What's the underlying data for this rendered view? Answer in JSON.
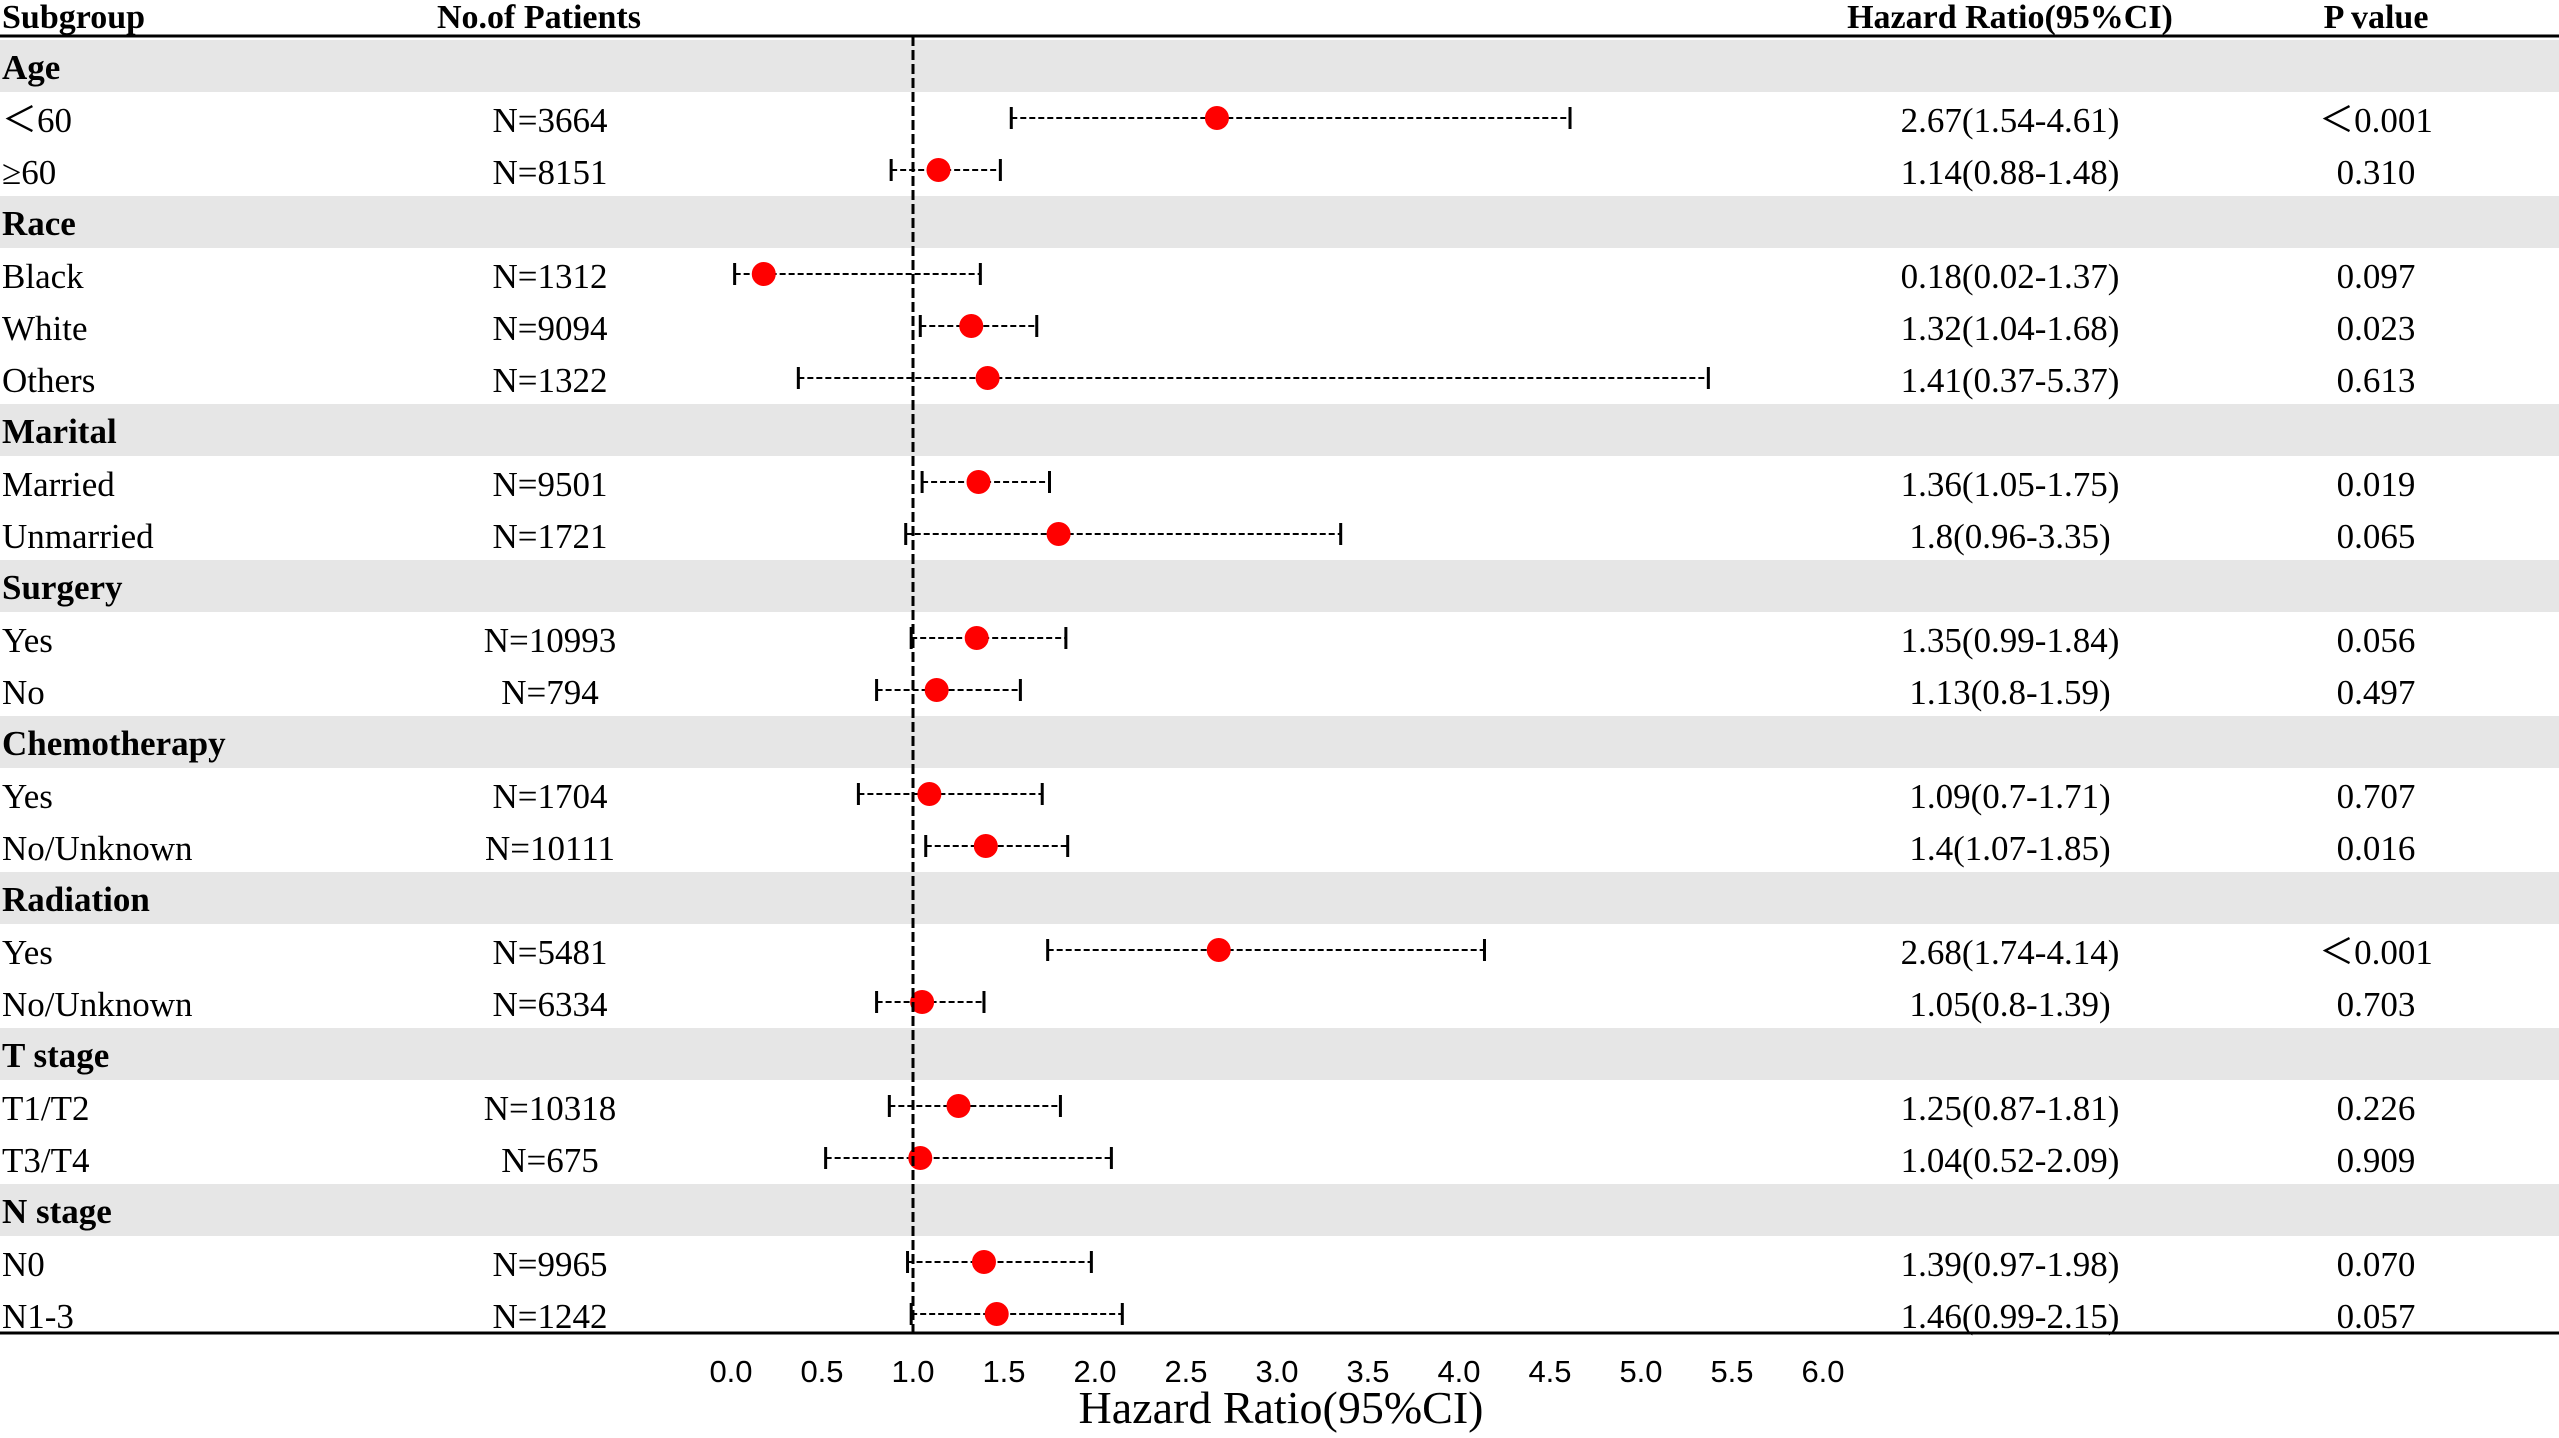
{
  "chart_data": {
    "type": "forest",
    "columns": {
      "subgroup": "Subgroup",
      "patients": "No.of Patients",
      "hr": "Hazard Ratio(95%CI)",
      "p": "P value"
    },
    "xlabel": "Hazard Ratio(95%CI)",
    "xlim": [
      0,
      6
    ],
    "ticks": [
      "0.0",
      "0.5",
      "1.0",
      "1.5",
      "2.0",
      "2.5",
      "3.0",
      "3.5",
      "4.0",
      "4.5",
      "5.0",
      "5.5",
      "6.0"
    ],
    "reference_line": 1.0,
    "point_color": "#ff0000",
    "band_color": "#e6e6e6",
    "groups": [
      {
        "name": "Age",
        "rows": [
          {
            "label": "＜60",
            "n": "N=3664",
            "hr": 2.67,
            "lo": 1.54,
            "hi": 4.61,
            "ci_text": "2.67(1.54-4.61)",
            "p": "＜0.001"
          },
          {
            "label": "≥60",
            "n": "N=8151",
            "hr": 1.14,
            "lo": 0.88,
            "hi": 1.48,
            "ci_text": "1.14(0.88-1.48)",
            "p": "0.310"
          }
        ]
      },
      {
        "name": "Race",
        "rows": [
          {
            "label": "Black",
            "n": "N=1312",
            "hr": 0.18,
            "lo": 0.02,
            "hi": 1.37,
            "ci_text": "0.18(0.02-1.37)",
            "p": "0.097"
          },
          {
            "label": "White",
            "n": "N=9094",
            "hr": 1.32,
            "lo": 1.04,
            "hi": 1.68,
            "ci_text": "1.32(1.04-1.68)",
            "p": "0.023"
          },
          {
            "label": "Others",
            "n": "N=1322",
            "hr": 1.41,
            "lo": 0.37,
            "hi": 5.37,
            "ci_text": "1.41(0.37-5.37)",
            "p": "0.613"
          }
        ]
      },
      {
        "name": "Marital",
        "rows": [
          {
            "label": "Married",
            "n": "N=9501",
            "hr": 1.36,
            "lo": 1.05,
            "hi": 1.75,
            "ci_text": "1.36(1.05-1.75)",
            "p": "0.019"
          },
          {
            "label": "Unmarried",
            "n": "N=1721",
            "hr": 1.8,
            "lo": 0.96,
            "hi": 3.35,
            "ci_text": "1.8(0.96-3.35)",
            "p": "0.065"
          }
        ]
      },
      {
        "name": "Surgery",
        "rows": [
          {
            "label": "Yes",
            "n": "N=10993",
            "hr": 1.35,
            "lo": 0.99,
            "hi": 1.84,
            "ci_text": "1.35(0.99-1.84)",
            "p": "0.056"
          },
          {
            "label": "No",
            "n": "N=794",
            "hr": 1.13,
            "lo": 0.8,
            "hi": 1.59,
            "ci_text": "1.13(0.8-1.59)",
            "p": "0.497"
          }
        ]
      },
      {
        "name": "Chemotherapy",
        "rows": [
          {
            "label": "Yes",
            "n": "N=1704",
            "hr": 1.09,
            "lo": 0.7,
            "hi": 1.71,
            "ci_text": "1.09(0.7-1.71)",
            "p": "0.707"
          },
          {
            "label": "No/Unknown",
            "n": "N=10111",
            "hr": 1.4,
            "lo": 1.07,
            "hi": 1.85,
            "ci_text": "1.4(1.07-1.85)",
            "p": "0.016"
          }
        ]
      },
      {
        "name": "Radiation",
        "rows": [
          {
            "label": "Yes",
            "n": "N=5481",
            "hr": 2.68,
            "lo": 1.74,
            "hi": 4.14,
            "ci_text": "2.68(1.74-4.14)",
            "p": "＜0.001"
          },
          {
            "label": "No/Unknown",
            "n": "N=6334",
            "hr": 1.05,
            "lo": 0.8,
            "hi": 1.39,
            "ci_text": "1.05(0.8-1.39)",
            "p": "0.703"
          }
        ]
      },
      {
        "name": "T stage",
        "rows": [
          {
            "label": "T1/T2",
            "n": "N=10318",
            "hr": 1.25,
            "lo": 0.87,
            "hi": 1.81,
            "ci_text": "1.25(0.87-1.81)",
            "p": "0.226"
          },
          {
            "label": "T3/T4",
            "n": "N=675",
            "hr": 1.04,
            "lo": 0.52,
            "hi": 2.09,
            "ci_text": "1.04(0.52-2.09)",
            "p": "0.909"
          }
        ]
      },
      {
        "name": "N stage",
        "rows": [
          {
            "label": "N0",
            "n": "N=9965",
            "hr": 1.39,
            "lo": 0.97,
            "hi": 1.98,
            "ci_text": "1.39(0.97-1.98)",
            "p": "0.070"
          },
          {
            "label": "N1-3",
            "n": "N=1242",
            "hr": 1.46,
            "lo": 0.99,
            "hi": 2.15,
            "ci_text": "1.46(0.99-2.15)",
            "p": "0.057"
          }
        ]
      }
    ]
  }
}
